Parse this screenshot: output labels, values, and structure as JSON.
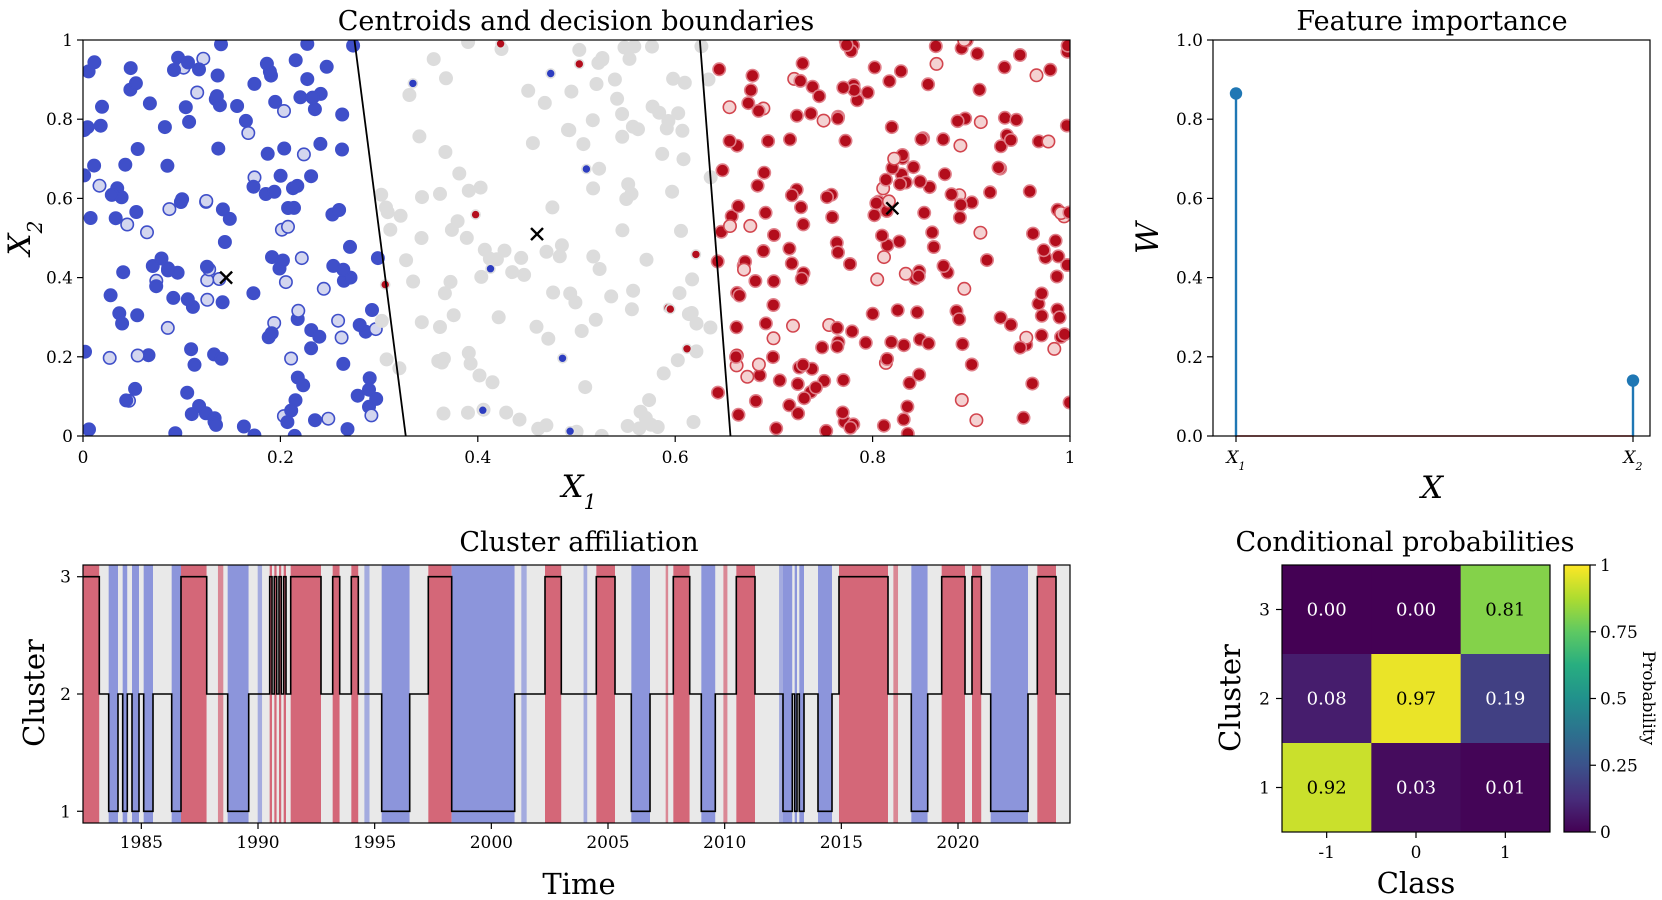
{
  "chart_data": [
    {
      "type": "scatter",
      "title": "Centroids and decision boundaries",
      "xlabel": "X1",
      "ylabel": "X2",
      "xlim": [
        0,
        1
      ],
      "ylim": [
        0,
        1
      ],
      "xticks": [
        "0",
        "0.2",
        "0.4",
        "0.6",
        "0.8",
        "1"
      ],
      "yticks": [
        "0",
        "0.2",
        "0.4",
        "0.6",
        "0.8",
        "1"
      ],
      "centroids": [
        {
          "cluster": 1,
          "x": 0.145,
          "y": 0.4
        },
        {
          "cluster": 2,
          "x": 0.46,
          "y": 0.51
        },
        {
          "cluster": 3,
          "x": 0.82,
          "y": 0.575
        }
      ],
      "boundaries": [
        {
          "x1": 0.275,
          "y1": 1.0,
          "x2": 0.327,
          "y2": 0.0
        },
        {
          "x1": 0.625,
          "y1": 1.0,
          "x2": 0.656,
          "y2": 0.0
        }
      ],
      "regions": [
        {
          "cluster": 1,
          "color": "#3f4fc9",
          "x_range": [
            0.0,
            0.3
          ],
          "n": 175
        },
        {
          "cluster": 2,
          "color": "#dcdcdc",
          "x_range": [
            0.3,
            0.64
          ],
          "n": 150
        },
        {
          "cluster": 3,
          "color": "#b30d1c",
          "x_range": [
            0.64,
            1.0
          ],
          "n": 230
        }
      ],
      "series": [
        {
          "name": "class -1",
          "color": "#3f4fc9"
        },
        {
          "name": "class 0",
          "color": "#dcdcdc"
        },
        {
          "name": "class 1",
          "color": "#b30d1c"
        }
      ]
    },
    {
      "type": "stem",
      "title": "Feature importance",
      "xlabel": "X",
      "ylabel": "W",
      "categories": [
        "X1",
        "X2"
      ],
      "values": [
        0.865,
        0.14
      ],
      "ylim": [
        0,
        1.0
      ],
      "yticks": [
        "0.0",
        "0.2",
        "0.4",
        "0.6",
        "0.8",
        "1.0"
      ],
      "color": "#1f77b4"
    },
    {
      "type": "line",
      "title": "Cluster affiliation",
      "xlabel": "Time",
      "ylabel": "Cluster",
      "xlim": [
        1982.5,
        2024.8
      ],
      "ylim": [
        0.9,
        3.1
      ],
      "xticks": [
        "1985",
        "1990",
        "1995",
        "2000",
        "2005",
        "2010",
        "2015",
        "2020"
      ],
      "yticks": [
        "1",
        "2",
        "3"
      ],
      "band_colors": {
        "class_-1": "#8c95db",
        "class_0": "#e9e9e9",
        "class_1": "#d46778"
      },
      "segments": [
        {
          "t0": 1982.5,
          "t1": 1983.2,
          "cluster": 3
        },
        {
          "t0": 1983.2,
          "t1": 1983.6,
          "cluster": 2
        },
        {
          "t0": 1983.6,
          "t1": 1984.0,
          "cluster": 1
        },
        {
          "t0": 1984.0,
          "t1": 1984.2,
          "cluster": 2
        },
        {
          "t0": 1984.2,
          "t1": 1984.4,
          "cluster": 1
        },
        {
          "t0": 1984.4,
          "t1": 1984.6,
          "cluster": 2
        },
        {
          "t0": 1984.6,
          "t1": 1984.9,
          "cluster": 1
        },
        {
          "t0": 1984.9,
          "t1": 1985.1,
          "cluster": 2
        },
        {
          "t0": 1985.1,
          "t1": 1985.5,
          "cluster": 1
        },
        {
          "t0": 1985.5,
          "t1": 1986.3,
          "cluster": 2
        },
        {
          "t0": 1986.3,
          "t1": 1986.7,
          "cluster": 1
        },
        {
          "t0": 1986.7,
          "t1": 1987.8,
          "cluster": 3
        },
        {
          "t0": 1987.8,
          "t1": 1988.7,
          "cluster": 2
        },
        {
          "t0": 1988.7,
          "t1": 1989.6,
          "cluster": 1
        },
        {
          "t0": 1989.6,
          "t1": 1990.5,
          "cluster": 2
        },
        {
          "t0": 1990.5,
          "t1": 1990.6,
          "cluster": 3
        },
        {
          "t0": 1990.6,
          "t1": 1990.7,
          "cluster": 2
        },
        {
          "t0": 1990.7,
          "t1": 1990.8,
          "cluster": 3
        },
        {
          "t0": 1990.8,
          "t1": 1990.9,
          "cluster": 2
        },
        {
          "t0": 1990.9,
          "t1": 1991.0,
          "cluster": 3
        },
        {
          "t0": 1991.0,
          "t1": 1991.1,
          "cluster": 2
        },
        {
          "t0": 1991.1,
          "t1": 1991.2,
          "cluster": 3
        },
        {
          "t0": 1991.2,
          "t1": 1991.4,
          "cluster": 2
        },
        {
          "t0": 1991.4,
          "t1": 1992.7,
          "cluster": 3
        },
        {
          "t0": 1992.7,
          "t1": 1993.2,
          "cluster": 2
        },
        {
          "t0": 1993.2,
          "t1": 1993.5,
          "cluster": 3
        },
        {
          "t0": 1993.5,
          "t1": 1994.0,
          "cluster": 2
        },
        {
          "t0": 1994.0,
          "t1": 1994.3,
          "cluster": 3
        },
        {
          "t0": 1994.3,
          "t1": 1995.3,
          "cluster": 2
        },
        {
          "t0": 1995.3,
          "t1": 1996.5,
          "cluster": 1
        },
        {
          "t0": 1996.5,
          "t1": 1997.3,
          "cluster": 2
        },
        {
          "t0": 1997.3,
          "t1": 1998.3,
          "cluster": 3
        },
        {
          "t0": 1998.3,
          "t1": 2001.0,
          "cluster": 1
        },
        {
          "t0": 2001.0,
          "t1": 2002.3,
          "cluster": 2
        },
        {
          "t0": 2002.3,
          "t1": 2003.0,
          "cluster": 3
        },
        {
          "t0": 2003.0,
          "t1": 2004.5,
          "cluster": 2
        },
        {
          "t0": 2004.5,
          "t1": 2005.3,
          "cluster": 3
        },
        {
          "t0": 2005.3,
          "t1": 2006.0,
          "cluster": 2
        },
        {
          "t0": 2006.0,
          "t1": 2006.8,
          "cluster": 1
        },
        {
          "t0": 2006.8,
          "t1": 2007.8,
          "cluster": 2
        },
        {
          "t0": 2007.8,
          "t1": 2008.5,
          "cluster": 3
        },
        {
          "t0": 2008.5,
          "t1": 2009.0,
          "cluster": 2
        },
        {
          "t0": 2009.0,
          "t1": 2009.6,
          "cluster": 1
        },
        {
          "t0": 2009.6,
          "t1": 2010.5,
          "cluster": 2
        },
        {
          "t0": 2010.5,
          "t1": 2011.3,
          "cluster": 3
        },
        {
          "t0": 2011.3,
          "t1": 2012.5,
          "cluster": 2
        },
        {
          "t0": 2012.5,
          "t1": 2012.9,
          "cluster": 1
        },
        {
          "t0": 2012.9,
          "t1": 2013.0,
          "cluster": 2
        },
        {
          "t0": 2013.0,
          "t1": 2013.1,
          "cluster": 1
        },
        {
          "t0": 2013.1,
          "t1": 2013.2,
          "cluster": 2
        },
        {
          "t0": 2013.2,
          "t1": 2013.4,
          "cluster": 1
        },
        {
          "t0": 2013.4,
          "t1": 2014.0,
          "cluster": 2
        },
        {
          "t0": 2014.0,
          "t1": 2014.6,
          "cluster": 1
        },
        {
          "t0": 2014.6,
          "t1": 2014.9,
          "cluster": 2
        },
        {
          "t0": 2014.9,
          "t1": 2017.0,
          "cluster": 3
        },
        {
          "t0": 2017.0,
          "t1": 2018.0,
          "cluster": 2
        },
        {
          "t0": 2018.0,
          "t1": 2018.7,
          "cluster": 1
        },
        {
          "t0": 2018.7,
          "t1": 2019.3,
          "cluster": 2
        },
        {
          "t0": 2019.3,
          "t1": 2020.3,
          "cluster": 3
        },
        {
          "t0": 2020.3,
          "t1": 2020.6,
          "cluster": 2
        },
        {
          "t0": 2020.6,
          "t1": 2021.0,
          "cluster": 3
        },
        {
          "t0": 2021.0,
          "t1": 2021.4,
          "cluster": 2
        },
        {
          "t0": 2021.4,
          "t1": 2023.0,
          "cluster": 1
        },
        {
          "t0": 2023.0,
          "t1": 2023.4,
          "cluster": 2
        },
        {
          "t0": 2023.4,
          "t1": 2024.2,
          "cluster": 3
        },
        {
          "t0": 2024.2,
          "t1": 2024.8,
          "cluster": 2
        }
      ]
    },
    {
      "type": "heatmap",
      "title": "Conditional probabilities",
      "xlabel": "Class",
      "ylabel": "Cluster",
      "x_categories": [
        "-1",
        "0",
        "1"
      ],
      "y_categories": [
        "3",
        "2",
        "1"
      ],
      "values": [
        [
          0.0,
          0.0,
          0.81
        ],
        [
          0.08,
          0.97,
          0.19
        ],
        [
          0.92,
          0.03,
          0.01
        ]
      ],
      "labels": [
        [
          "0.00",
          "0.00",
          "0.81"
        ],
        [
          "0.08",
          "0.97",
          "0.19"
        ],
        [
          "0.92",
          "0.03",
          "0.01"
        ]
      ],
      "colormap": "viridis",
      "colorbar_label": "Probability",
      "colorbar_ticks": [
        "0",
        "0.25",
        "0.5",
        "0.75",
        "1"
      ],
      "zlim": [
        0,
        1
      ]
    }
  ]
}
